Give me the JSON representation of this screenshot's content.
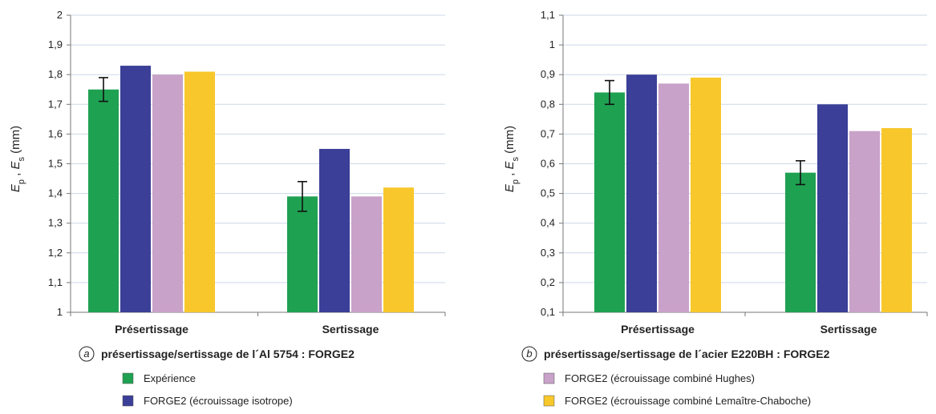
{
  "y_axis_label": {
    "main": "E",
    "sub1": "p",
    "sep": " , ",
    "main2": "E",
    "sub2": "s",
    "unit": " (mm)"
  },
  "chart_data": [
    {
      "type": "bar",
      "categories": [
        "Présertissage",
        "Sertissage"
      ],
      "ylim": [
        1,
        2
      ],
      "yticks": [
        "1",
        "1,1",
        "1,2",
        "1,3",
        "1,4",
        "1,5",
        "1,6",
        "1,7",
        "1,8",
        "1,9",
        "2"
      ],
      "grid": true,
      "caption_letter": "a",
      "caption": "présertissage/sertissage de l´Al 5754 : FORGE2",
      "series": [
        {
          "name": "Expérience",
          "color": "#1fa152",
          "values": [
            1.75,
            1.39
          ],
          "error": [
            0.04,
            0.05
          ]
        },
        {
          "name": "FORGE2 (écrouissage isotrope)",
          "color": "#3b3f97",
          "values": [
            1.83,
            1.55
          ]
        },
        {
          "name": "FORGE2 (écrouissage combiné Hughes)",
          "color": "#c8a2c8",
          "values": [
            1.8,
            1.39
          ]
        },
        {
          "name": "FORGE2 (écrouissage combiné Lemaître-Chaboche)",
          "color": "#f8c72b",
          "values": [
            1.81,
            1.42
          ]
        }
      ]
    },
    {
      "type": "bar",
      "categories": [
        "Présertissage",
        "Sertissage"
      ],
      "ylim": [
        0.1,
        1.1
      ],
      "yticks": [
        "0,1",
        "0,2",
        "0,3",
        "0,4",
        "0,5",
        "0,6",
        "0,7",
        "0,8",
        "0,9",
        "1",
        "1,1"
      ],
      "grid": true,
      "caption_letter": "b",
      "caption": "présertissage/sertissage de l´acier E220BH : FORGE2",
      "series": [
        {
          "name": "Expérience",
          "color": "#1fa152",
          "values": [
            0.84,
            0.57
          ],
          "error": [
            0.04,
            0.04
          ]
        },
        {
          "name": "FORGE2 (écrouissage isotrope)",
          "color": "#3b3f97",
          "values": [
            0.9,
            0.8
          ]
        },
        {
          "name": "FORGE2 (écrouissage combiné Hughes)",
          "color": "#c8a2c8",
          "values": [
            0.87,
            0.71
          ]
        },
        {
          "name": "FORGE2 (écrouissage combiné Lemaître-Chaboche)",
          "color": "#f8c72b",
          "values": [
            0.89,
            0.72
          ]
        }
      ]
    }
  ],
  "legend": [
    {
      "label": "Expérience",
      "color": "#1fa152"
    },
    {
      "label": "FORGE2 (écrouissage isotrope)",
      "color": "#3b3f97"
    },
    {
      "label": "FORGE2 (écrouissage combiné Hughes)",
      "color": "#c8a2c8"
    },
    {
      "label": "FORGE2 (écrouissage combiné Lemaître-Chaboche)",
      "color": "#f8c72b"
    }
  ]
}
